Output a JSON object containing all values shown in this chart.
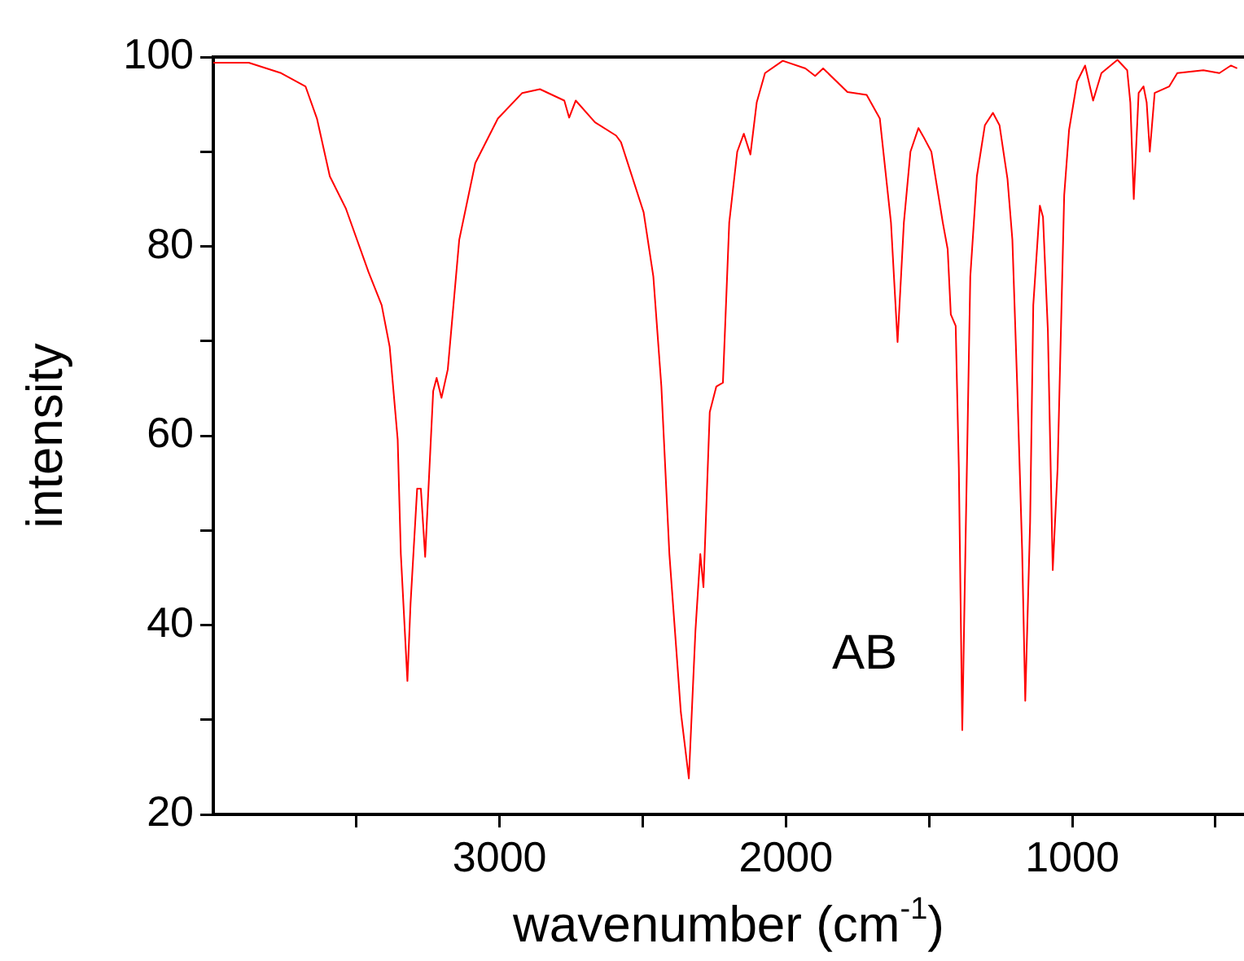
{
  "chart_data": {
    "type": "line",
    "xlabel": "wavenumber (cm$^{-1}$)",
    "ylabel": "intensity",
    "annotations": [
      "AB"
    ],
    "xlim": [
      4000,
      400
    ],
    "ylim": [
      20,
      100
    ],
    "xticks": [
      {
        "value": 3500,
        "label": null
      },
      3000,
      {
        "value": 2500,
        "label": null
      },
      2000,
      {
        "value": 1500,
        "label": null
      },
      1000,
      {
        "value": 500,
        "label": null
      }
    ],
    "yticks": [
      20,
      {
        "value": 30,
        "label": null
      },
      40,
      {
        "value": 50,
        "label": null
      },
      60,
      {
        "value": 70,
        "label": null
      },
      80,
      {
        "value": 90,
        "label": null
      },
      100
    ],
    "grid": false,
    "legend": false,
    "marker": "none",
    "line_style": "solid",
    "series": [
      {
        "color": "#ff0000",
        "x": [
          4000,
          3876,
          3763,
          3678,
          3638,
          3593,
          3537,
          3458,
          3412,
          3384,
          3356,
          3345,
          3322,
          3311,
          3288,
          3275,
          3260,
          3232,
          3220,
          3203,
          3181,
          3141,
          3085,
          3006,
          2921,
          2859,
          2774,
          2757,
          2734,
          2667,
          2593,
          2576,
          2497,
          2463,
          2435,
          2407,
          2367,
          2339,
          2316,
          2299,
          2288,
          2266,
          2243,
          2220,
          2198,
          2170,
          2147,
          2124,
          2102,
          2073,
          2011,
          1932,
          1898,
          1870,
          1785,
          1718,
          1672,
          1633,
          1610,
          1588,
          1565,
          1537,
          1520,
          1492,
          1452,
          1435,
          1424,
          1407,
          1396,
          1384,
          1373,
          1356,
          1333,
          1305,
          1277,
          1254,
          1226,
          1209,
          1192,
          1175,
          1164,
          1147,
          1136,
          1113,
          1102,
          1085,
          1068,
          1051,
          1028,
          1011,
          983,
          955,
          927,
          898,
          842,
          808,
          797,
          785,
          768,
          751,
          740,
          729,
          712,
          661,
          633,
          542,
          486,
          446,
          424
        ],
        "values": [
          99.4,
          99.4,
          98.3,
          96.9,
          93.5,
          87.4,
          84,
          77.3,
          73.8,
          69.4,
          59.6,
          47.5,
          34.1,
          42.3,
          54.4,
          54.4,
          47.2,
          64.7,
          66.1,
          64,
          67,
          80.7,
          88.8,
          93.5,
          96.2,
          96.6,
          95.4,
          93.6,
          95.4,
          93.1,
          91.7,
          91,
          83.6,
          76.8,
          65.2,
          47.5,
          30.8,
          23.8,
          39.4,
          47.5,
          44,
          62.5,
          65.2,
          65.6,
          82.5,
          90,
          91.9,
          89.7,
          95.2,
          98.3,
          99.6,
          98.8,
          98,
          98.8,
          96.3,
          96,
          93.5,
          82.5,
          69.9,
          82.5,
          90,
          92.5,
          91.6,
          90,
          82.5,
          79.7,
          72.8,
          71.6,
          56.6,
          28.9,
          48,
          76.8,
          87.4,
          92.8,
          94.1,
          92.8,
          87.1,
          80.7,
          65.2,
          48,
          32,
          50.9,
          73.8,
          84.3,
          83.1,
          71.1,
          45.8,
          56.6,
          85.4,
          92.3,
          97.4,
          99.1,
          95.4,
          98.3,
          99.7,
          98.6,
          95.2,
          85,
          96.2,
          96.9,
          95.2,
          90,
          96.2,
          96.9,
          98.3,
          98.6,
          98.3,
          99.1,
          98.8
        ]
      }
    ]
  }
}
